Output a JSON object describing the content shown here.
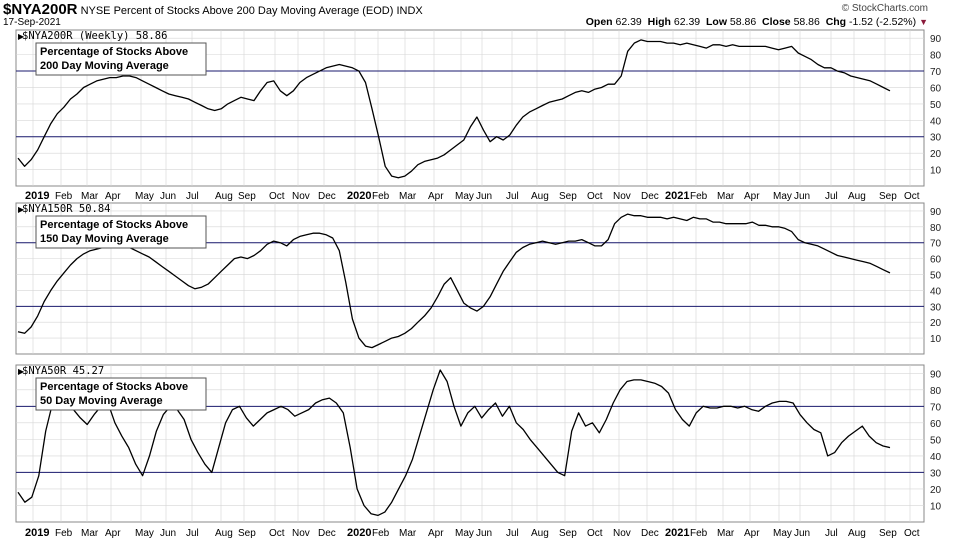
{
  "header": {
    "symbol": "$NYA200R",
    "description": "NYSE Percent of Stocks Above 200 Day Moving Average (EOD)",
    "exchange": "INDX",
    "date": "17-Sep-2021",
    "brand": "© StockCharts.com",
    "open_label": "Open",
    "open": "62.39",
    "high_label": "High",
    "high": "62.39",
    "low_label": "Low",
    "low": "58.86",
    "close_label": "Close",
    "close": "58.86",
    "chg_label": "Chg",
    "chg": "-1.52 (-2.52%)",
    "chg_icon": "down-triangle-icon"
  },
  "chart_data": [
    {
      "type": "line",
      "legend": "$NYA200R (Weekly) 58.86",
      "annotation": [
        "Percentage of Stocks Above",
        "200 Day Moving Average"
      ],
      "ylim": [
        0,
        95
      ],
      "yticks": [
        10,
        20,
        30,
        40,
        50,
        60,
        70,
        80,
        90
      ],
      "hlines": [
        70,
        30
      ],
      "x_labels": [
        "2019",
        "Feb",
        "Mar",
        "Apr",
        "May",
        "Jun",
        "Jul",
        "Aug",
        "Sep",
        "Oct",
        "Nov",
        "Dec",
        "2020",
        "Feb",
        "Mar",
        "Apr",
        "May",
        "Jun",
        "Jul",
        "Aug",
        "Sep",
        "Oct",
        "Nov",
        "Dec",
        "2021",
        "Feb",
        "Mar",
        "Apr",
        "May",
        "Jun",
        "Jul",
        "Aug",
        "Sep",
        "Oct"
      ],
      "series": [
        {
          "values": [
            17,
            12,
            16,
            22,
            30,
            38,
            44,
            48,
            53,
            56,
            60,
            62,
            64,
            65,
            66,
            66,
            67,
            67,
            66,
            64,
            62,
            60,
            58,
            56,
            55,
            54,
            53,
            51,
            49,
            47,
            46,
            47,
            50,
            52,
            54,
            53,
            52,
            58,
            63,
            64,
            58,
            55,
            58,
            63,
            66,
            68,
            70,
            72,
            73,
            74,
            73,
            72,
            70,
            63,
            47,
            30,
            12,
            6,
            5,
            6,
            9,
            13,
            15,
            16,
            17,
            19,
            22,
            25,
            28,
            36,
            42,
            34,
            27,
            30,
            28,
            31,
            37,
            42,
            45,
            47,
            49,
            51,
            52,
            53,
            55,
            57,
            58,
            57,
            59,
            60,
            62,
            62,
            67,
            82,
            87,
            89,
            88,
            88,
            88,
            87,
            87,
            86,
            87,
            86,
            85,
            84,
            86,
            86,
            85,
            86,
            85,
            85,
            85,
            85,
            85,
            84,
            83,
            84,
            85,
            81,
            79,
            77,
            74,
            72,
            72,
            70,
            69,
            67,
            66,
            65,
            64,
            62,
            60,
            58
          ]
        }
      ]
    },
    {
      "type": "line",
      "legend": "$NYA150R 50.84",
      "annotation": [
        "Percentage of Stocks Above",
        "150 Day Moving Average"
      ],
      "ylim": [
        0,
        95
      ],
      "yticks": [
        10,
        20,
        30,
        40,
        50,
        60,
        70,
        80,
        90
      ],
      "hlines": [
        70,
        30
      ],
      "x_labels": [],
      "series": [
        {
          "values": [
            14,
            13,
            17,
            24,
            33,
            40,
            46,
            51,
            56,
            60,
            63,
            65,
            66,
            67,
            68,
            68,
            68,
            67,
            65,
            63,
            61,
            58,
            55,
            52,
            49,
            46,
            43,
            41,
            42,
            44,
            48,
            52,
            56,
            60,
            61,
            60,
            62,
            65,
            69,
            71,
            70,
            68,
            72,
            74,
            75,
            76,
            76,
            75,
            73,
            65,
            45,
            22,
            10,
            5,
            4,
            6,
            8,
            10,
            11,
            13,
            16,
            20,
            24,
            29,
            36,
            44,
            48,
            40,
            32,
            29,
            27,
            30,
            36,
            44,
            52,
            58,
            64,
            67,
            69,
            70,
            71,
            70,
            69,
            70,
            71,
            71,
            72,
            70,
            68,
            68,
            72,
            82,
            86,
            88,
            87,
            87,
            86,
            86,
            86,
            85,
            86,
            85,
            84,
            86,
            85,
            85,
            83,
            83,
            82,
            82,
            82,
            82,
            83,
            81,
            81,
            80,
            80,
            79,
            77,
            72,
            70,
            69,
            68,
            66,
            64,
            62,
            61,
            60,
            59,
            58,
            57,
            55,
            53,
            51
          ]
        }
      ]
    },
    {
      "type": "line",
      "legend": "$NYA50R 45.27",
      "annotation": [
        "Percentage of Stocks Above",
        "50 Day Moving Average"
      ],
      "ylim": [
        0,
        95
      ],
      "yticks": [
        10,
        20,
        30,
        40,
        50,
        60,
        70,
        80,
        90
      ],
      "hlines": [
        70,
        30
      ],
      "x_labels": [
        "2019",
        "Feb",
        "Mar",
        "Apr",
        "May",
        "Jun",
        "Jul",
        "Aug",
        "Sep",
        "Oct",
        "Nov",
        "Dec",
        "2020",
        "Feb",
        "Mar",
        "Apr",
        "May",
        "Jun",
        "Jul",
        "Aug",
        "Sep",
        "Oct",
        "Nov",
        "Dec",
        "2021",
        "Feb",
        "Mar",
        "Apr",
        "May",
        "Jun",
        "Jul",
        "Aug",
        "Sep",
        "Oct"
      ],
      "series": [
        {
          "values": [
            18,
            12,
            15,
            28,
            55,
            72,
            73,
            70,
            68,
            63,
            59,
            65,
            70,
            72,
            60,
            52,
            45,
            35,
            28,
            40,
            55,
            65,
            70,
            68,
            62,
            50,
            42,
            35,
            30,
            45,
            60,
            68,
            70,
            63,
            58,
            62,
            66,
            68,
            70,
            68,
            64,
            66,
            68,
            72,
            74,
            75,
            72,
            66,
            45,
            20,
            10,
            5,
            4,
            6,
            12,
            20,
            28,
            38,
            52,
            66,
            80,
            92,
            85,
            70,
            58,
            66,
            70,
            63,
            68,
            72,
            64,
            70,
            60,
            56,
            50,
            45,
            40,
            35,
            30,
            28,
            55,
            66,
            58,
            60,
            54,
            62,
            72,
            80,
            85,
            86,
            86,
            85,
            84,
            82,
            78,
            68,
            62,
            58,
            66,
            70,
            69,
            69,
            70,
            70,
            69,
            70,
            68,
            67,
            70,
            72,
            73,
            73,
            72,
            65,
            60,
            56,
            54,
            40,
            42,
            48,
            52,
            55,
            58,
            52,
            48,
            46,
            45
          ]
        }
      ]
    }
  ]
}
